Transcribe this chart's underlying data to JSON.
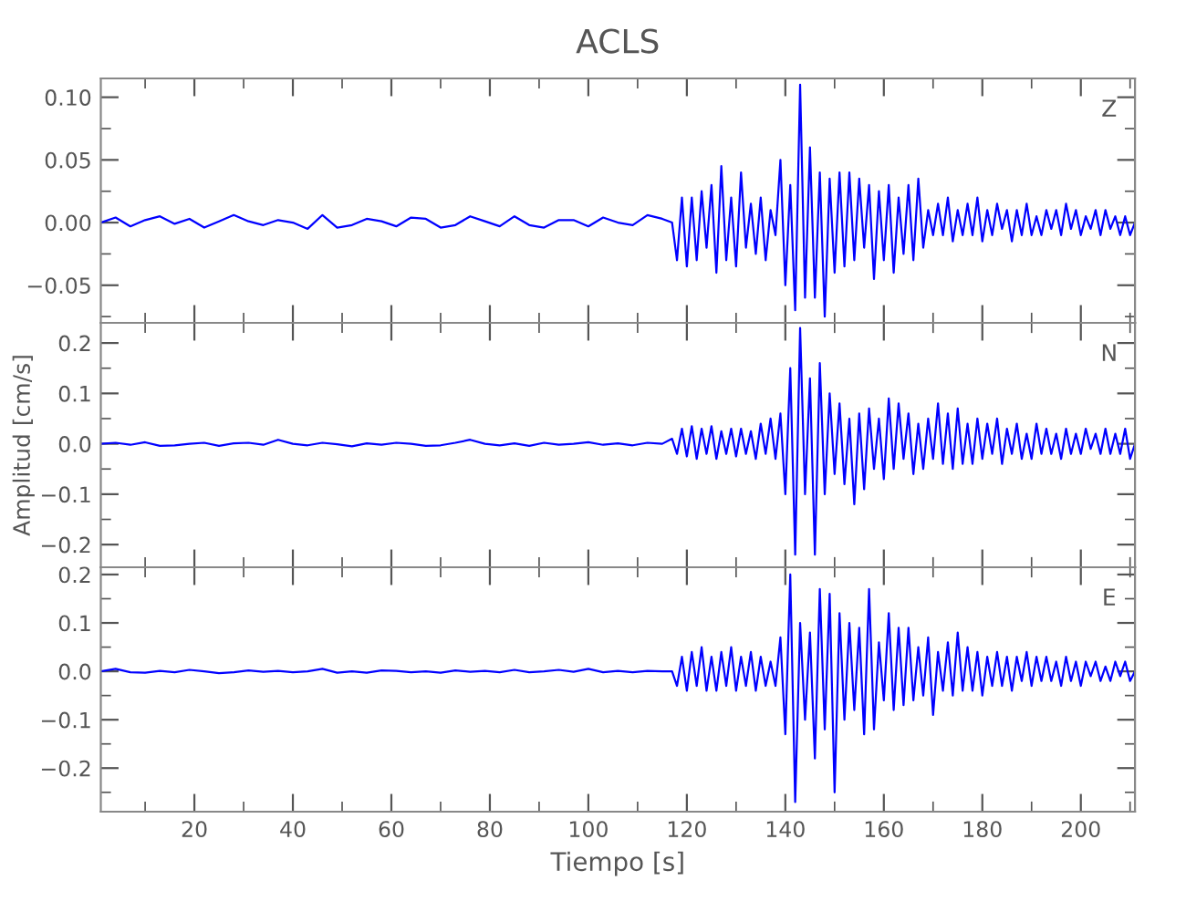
{
  "chart_data": [
    {
      "type": "line",
      "title": "ACLS",
      "annotations": [
        "Z"
      ],
      "tick_labels": "y",
      "xlim": [
        1,
        211
      ],
      "xticks": [
        20,
        40,
        60,
        80,
        100,
        120,
        140,
        160,
        180,
        200
      ],
      "ylim": [
        -0.08,
        0.115
      ],
      "yticks": [
        {
          "value": -0.05,
          "label": "−0.05"
        },
        {
          "value": 0.0,
          "label": "0.00"
        },
        {
          "value": 0.05,
          "label": "0.05"
        },
        {
          "value": 0.1,
          "label": "0.10"
        }
      ],
      "x": [
        1,
        4,
        7,
        10,
        13,
        16,
        19,
        22,
        25,
        28,
        31,
        34,
        37,
        40,
        43,
        46,
        49,
        52,
        55,
        58,
        61,
        64,
        67,
        70,
        73,
        76,
        79,
        82,
        85,
        88,
        91,
        94,
        97,
        100,
        103,
        106,
        109,
        112,
        115,
        117,
        118,
        119,
        120,
        121,
        122,
        123,
        124,
        125,
        126,
        127,
        128,
        129,
        130,
        131,
        132,
        133,
        134,
        135,
        136,
        137,
        138,
        139,
        140,
        141,
        142,
        143,
        144,
        145,
        146,
        147,
        148,
        149,
        150,
        151,
        152,
        153,
        154,
        155,
        156,
        157,
        158,
        159,
        160,
        161,
        162,
        163,
        164,
        165,
        166,
        167,
        168,
        169,
        170,
        171,
        172,
        173,
        174,
        175,
        176,
        177,
        178,
        179,
        180,
        181,
        182,
        183,
        184,
        185,
        186,
        187,
        188,
        189,
        190,
        191,
        192,
        193,
        194,
        195,
        196,
        197,
        198,
        199,
        200,
        201,
        202,
        203,
        204,
        205,
        206,
        207,
        208,
        209,
        210,
        211
      ],
      "series": [
        {
          "color": "#0000ff",
          "values": [
            0.0,
            0.004,
            -0.003,
            0.002,
            0.005,
            -0.001,
            0.003,
            -0.004,
            0.001,
            0.006,
            0.001,
            -0.002,
            0.002,
            0.0,
            -0.005,
            0.006,
            -0.004,
            -0.002,
            0.003,
            0.001,
            -0.003,
            0.004,
            0.003,
            -0.004,
            -0.002,
            0.005,
            0.001,
            -0.003,
            0.005,
            -0.002,
            -0.004,
            0.002,
            0.002,
            -0.003,
            0.004,
            0.0,
            -0.002,
            0.006,
            0.003,
            0.0,
            -0.03,
            0.02,
            -0.035,
            0.02,
            -0.03,
            0.025,
            -0.02,
            0.03,
            -0.04,
            0.045,
            -0.03,
            0.02,
            -0.035,
            0.04,
            -0.02,
            0.015,
            -0.025,
            0.02,
            -0.03,
            0.01,
            -0.01,
            0.05,
            -0.05,
            0.03,
            -0.07,
            0.11,
            -0.06,
            0.06,
            -0.06,
            0.04,
            -0.075,
            0.035,
            -0.04,
            0.04,
            -0.035,
            0.04,
            -0.03,
            0.035,
            -0.02,
            0.03,
            -0.045,
            0.025,
            -0.03,
            0.03,
            -0.04,
            0.02,
            -0.025,
            0.03,
            -0.03,
            0.035,
            -0.02,
            0.01,
            -0.01,
            0.015,
            -0.01,
            0.02,
            -0.015,
            0.01,
            -0.01,
            0.015,
            -0.01,
            0.02,
            -0.015,
            0.01,
            -0.01,
            0.015,
            -0.005,
            0.01,
            -0.015,
            0.01,
            -0.01,
            0.015,
            -0.01,
            0.005,
            -0.01,
            0.01,
            -0.005,
            0.01,
            -0.01,
            0.015,
            -0.005,
            0.01,
            -0.01,
            0.005,
            -0.005,
            0.01,
            -0.01,
            0.01,
            -0.005,
            0.005,
            -0.01,
            0.005,
            -0.01,
            0.0
          ]
        }
      ]
    },
    {
      "type": "line",
      "ylabel": "Amplitud [cm/s]",
      "annotations": [
        "N"
      ],
      "tick_labels": "y",
      "xlim": [
        1,
        211
      ],
      "xticks": [
        20,
        40,
        60,
        80,
        100,
        120,
        140,
        160,
        180,
        200
      ],
      "ylim": [
        -0.245,
        0.24
      ],
      "yticks": [
        {
          "value": -0.2,
          "label": "−0.2"
        },
        {
          "value": -0.1,
          "label": "−0.1"
        },
        {
          "value": 0.0,
          "label": "0.0"
        },
        {
          "value": 0.1,
          "label": "0.1"
        },
        {
          "value": 0.2,
          "label": "0.2"
        }
      ],
      "x": [
        1,
        4,
        7,
        10,
        13,
        16,
        19,
        22,
        25,
        28,
        31,
        34,
        37,
        40,
        43,
        46,
        49,
        52,
        55,
        58,
        61,
        64,
        67,
        70,
        73,
        76,
        79,
        82,
        85,
        88,
        91,
        94,
        97,
        100,
        103,
        106,
        109,
        112,
        115,
        117,
        118,
        119,
        120,
        121,
        122,
        123,
        124,
        125,
        126,
        127,
        128,
        129,
        130,
        131,
        132,
        133,
        134,
        135,
        136,
        137,
        138,
        139,
        140,
        141,
        142,
        143,
        144,
        145,
        146,
        147,
        148,
        149,
        150,
        151,
        152,
        153,
        154,
        155,
        156,
        157,
        158,
        159,
        160,
        161,
        162,
        163,
        164,
        165,
        166,
        167,
        168,
        169,
        170,
        171,
        172,
        173,
        174,
        175,
        176,
        177,
        178,
        179,
        180,
        181,
        182,
        183,
        184,
        185,
        186,
        187,
        188,
        189,
        190,
        191,
        192,
        193,
        194,
        195,
        196,
        197,
        198,
        199,
        200,
        201,
        202,
        203,
        204,
        205,
        206,
        207,
        208,
        209,
        210,
        211
      ],
      "series": [
        {
          "color": "#0000ff",
          "values": [
            0.0,
            0.002,
            -0.002,
            0.003,
            -0.004,
            -0.003,
            0.0,
            0.002,
            -0.004,
            0.001,
            0.002,
            -0.002,
            0.008,
            0.0,
            -0.003,
            0.002,
            -0.001,
            -0.005,
            0.001,
            -0.002,
            0.002,
            0.0,
            -0.004,
            -0.003,
            0.002,
            0.008,
            0.0,
            -0.003,
            0.001,
            -0.004,
            0.002,
            -0.002,
            0.0,
            0.003,
            -0.002,
            0.001,
            -0.003,
            0.002,
            0.0,
            0.01,
            -0.02,
            0.03,
            -0.025,
            0.035,
            -0.03,
            0.03,
            -0.02,
            0.035,
            -0.03,
            0.025,
            -0.02,
            0.03,
            -0.025,
            0.03,
            -0.02,
            0.025,
            -0.03,
            0.04,
            -0.02,
            0.05,
            -0.03,
            0.06,
            -0.1,
            0.15,
            -0.22,
            0.23,
            -0.1,
            0.13,
            -0.22,
            0.16,
            -0.1,
            0.1,
            -0.06,
            0.08,
            -0.08,
            0.05,
            -0.12,
            0.06,
            -0.09,
            0.07,
            -0.05,
            0.05,
            -0.07,
            0.09,
            -0.05,
            0.08,
            -0.03,
            0.06,
            -0.06,
            0.04,
            -0.05,
            0.05,
            -0.03,
            0.08,
            -0.04,
            0.06,
            -0.05,
            0.07,
            -0.04,
            0.04,
            -0.04,
            0.05,
            -0.03,
            0.04,
            -0.02,
            0.05,
            -0.04,
            0.03,
            -0.02,
            0.04,
            -0.03,
            0.02,
            -0.03,
            0.04,
            -0.02,
            0.03,
            -0.02,
            0.02,
            -0.03,
            0.03,
            -0.02,
            0.02,
            -0.02,
            0.03,
            -0.01,
            0.02,
            -0.02,
            0.03,
            -0.02,
            0.02,
            -0.02,
            0.03,
            -0.03,
            0.0
          ]
        }
      ]
    },
    {
      "type": "line",
      "xlabel": "Tiempo [s]",
      "annotations": [
        "E"
      ],
      "xlim": [
        1,
        211
      ],
      "xticks": [
        20,
        40,
        60,
        80,
        100,
        120,
        140,
        160,
        180,
        200
      ],
      "ylim": [
        -0.29,
        0.215
      ],
      "yticks": [
        {
          "value": -0.2,
          "label": "−0.2"
        },
        {
          "value": -0.1,
          "label": "−0.1"
        },
        {
          "value": 0.0,
          "label": "0.0"
        },
        {
          "value": 0.1,
          "label": "0.1"
        },
        {
          "value": 0.2,
          "label": "0.2"
        }
      ],
      "x": [
        1,
        4,
        7,
        10,
        13,
        16,
        19,
        22,
        25,
        28,
        31,
        34,
        37,
        40,
        43,
        46,
        49,
        52,
        55,
        58,
        61,
        64,
        67,
        70,
        73,
        76,
        79,
        82,
        85,
        88,
        91,
        94,
        97,
        100,
        103,
        106,
        109,
        112,
        115,
        117,
        118,
        119,
        120,
        121,
        122,
        123,
        124,
        125,
        126,
        127,
        128,
        129,
        130,
        131,
        132,
        133,
        134,
        135,
        136,
        137,
        138,
        139,
        140,
        141,
        142,
        143,
        144,
        145,
        146,
        147,
        148,
        149,
        150,
        151,
        152,
        153,
        154,
        155,
        156,
        157,
        158,
        159,
        160,
        161,
        162,
        163,
        164,
        165,
        166,
        167,
        168,
        169,
        170,
        171,
        172,
        173,
        174,
        175,
        176,
        177,
        178,
        179,
        180,
        181,
        182,
        183,
        184,
        185,
        186,
        187,
        188,
        189,
        190,
        191,
        192,
        193,
        194,
        195,
        196,
        197,
        198,
        199,
        200,
        201,
        202,
        203,
        204,
        205,
        206,
        207,
        208,
        209,
        210,
        211
      ],
      "series": [
        {
          "color": "#0000ff",
          "values": [
            0.0,
            0.005,
            -0.002,
            -0.003,
            0.001,
            -0.002,
            0.003,
            0.0,
            -0.004,
            -0.002,
            0.002,
            -0.001,
            0.001,
            -0.002,
            0.0,
            0.005,
            -0.003,
            0.0,
            -0.003,
            0.002,
            0.001,
            -0.002,
            0.0,
            -0.003,
            0.002,
            -0.001,
            0.001,
            -0.002,
            0.003,
            -0.002,
            0.0,
            0.003,
            -0.001,
            0.005,
            -0.002,
            0.001,
            -0.002,
            0.001,
            0.0,
            0.0,
            -0.03,
            0.03,
            -0.04,
            0.04,
            -0.03,
            0.05,
            -0.04,
            0.03,
            -0.04,
            0.04,
            -0.03,
            0.05,
            -0.04,
            0.03,
            -0.03,
            0.04,
            -0.04,
            0.03,
            -0.03,
            0.02,
            -0.03,
            0.07,
            -0.13,
            0.2,
            -0.27,
            0.1,
            -0.1,
            0.08,
            -0.18,
            0.17,
            -0.12,
            0.16,
            -0.25,
            0.12,
            -0.1,
            0.1,
            -0.08,
            0.09,
            -0.13,
            0.17,
            -0.12,
            0.06,
            -0.06,
            0.12,
            -0.08,
            0.09,
            -0.07,
            0.09,
            -0.06,
            0.05,
            -0.05,
            0.07,
            -0.09,
            0.04,
            -0.04,
            0.06,
            -0.05,
            0.08,
            -0.04,
            0.05,
            -0.04,
            0.04,
            -0.05,
            0.03,
            -0.03,
            0.04,
            -0.03,
            0.03,
            -0.04,
            0.03,
            -0.02,
            0.04,
            -0.03,
            0.03,
            -0.02,
            0.03,
            -0.02,
            0.02,
            -0.03,
            0.03,
            -0.02,
            0.02,
            -0.03,
            0.02,
            -0.01,
            0.02,
            -0.02,
            0.01,
            -0.02,
            0.02,
            -0.01,
            0.02,
            -0.02,
            0.0
          ]
        }
      ]
    }
  ]
}
